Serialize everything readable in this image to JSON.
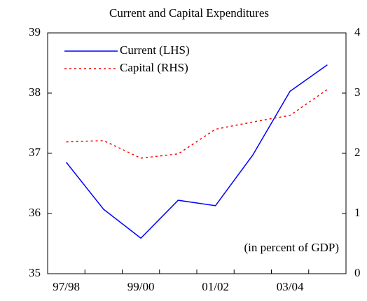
{
  "chart_data": {
    "type": "line",
    "title": "Current and Capital Expenditures",
    "annotation": "(in percent of GDP)",
    "categories": [
      "97/98",
      null,
      "99/00",
      null,
      "01/02",
      null,
      "03/04",
      null
    ],
    "series": [
      {
        "name": "Current (LHS)",
        "color": "#0000ff",
        "values": [
          36.85,
          36.07,
          35.59,
          36.22,
          36.13,
          36.97,
          38.03,
          38.47
        ]
      },
      {
        "name": "Capital (RHS)",
        "color": "#ff0000",
        "axis": "y2",
        "values": [
          2.19,
          2.21,
          1.92,
          1.99,
          2.4,
          2.52,
          2.63,
          3.06
        ]
      }
    ],
    "ylim": [
      35,
      39
    ],
    "yticks": [
      35,
      36,
      37,
      38,
      39
    ],
    "y2lim": [
      0,
      4
    ],
    "y2ticks": [
      0,
      1,
      2,
      3,
      4
    ]
  }
}
